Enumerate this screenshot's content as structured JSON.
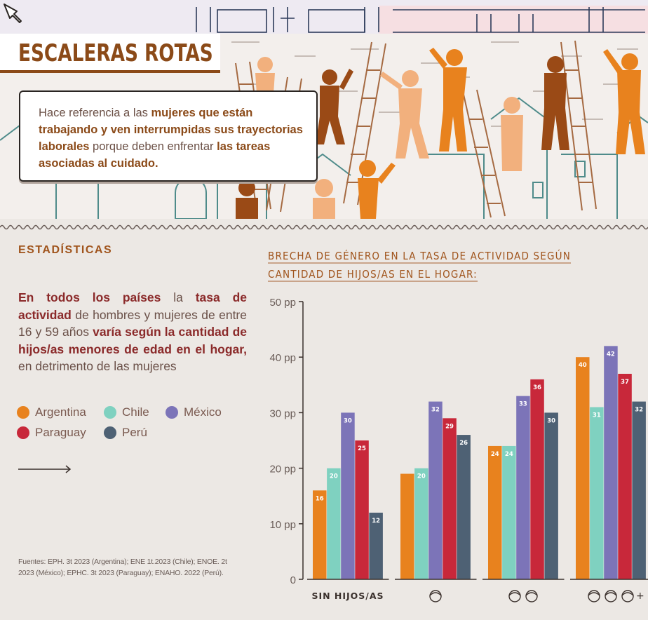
{
  "banner": {
    "title": "ESCALERAS ROTAS",
    "note": {
      "t1": "Hace referencia a las ",
      "b1": "mujeres que están trabajando y ven interrumpidas sus trayectorias laborales",
      "t2": " porque deben enfrentar ",
      "b2": "las tareas asociadas al cuidado."
    }
  },
  "stats": {
    "heading": "ESTADÍSTICAS",
    "b1": "En todos los países",
    "t1": " la ",
    "b2": "tasa de actividad",
    "t2": " de hombres y mujeres de entre 16 y 59 años ",
    "b3": "varía según la cantidad de hijos/as menores de edad en el hogar,",
    "t3": " en detrimento de las mujeres"
  },
  "legend": [
    {
      "label": "Argentina",
      "color": "#e8821e"
    },
    {
      "label": "Chile",
      "color": "#7fd1c0"
    },
    {
      "label": "México",
      "color": "#7c74b8"
    },
    {
      "label": "Paraguay",
      "color": "#c8283a"
    },
    {
      "label": "Perú",
      "color": "#4e6174"
    }
  ],
  "sources": "Fuentes: EPH. 3t 2023 (Argentina); ENE 1t.2023 (Chile); ENOE. 2t 2023 (México); EPHC. 3t 2023 (Paraguay); ENAHO. 2022 (Perú).",
  "chart_data": {
    "type": "bar",
    "title": "BRECHA DE GÉNERO EN LA TASA DE ACTIVIDAD SEGÚN CANTIDAD DE HIJOS/AS EN EL HOGAR:",
    "categories": [
      "SIN HIJOS/AS",
      "1 hijo/a (icon)",
      "2 hijos/as (icon)",
      "3+ hijos/as (icon)"
    ],
    "category_labels": [
      "SIN HIJOS/AS",
      "",
      "",
      "+"
    ],
    "category_icon_counts": [
      0,
      1,
      2,
      3
    ],
    "y_ticks": [
      "0",
      "10 pp",
      "20 pp",
      "30 pp",
      "40 pp",
      "50 pp"
    ],
    "ylim": [
      0,
      50
    ],
    "grid": false,
    "legend_position": "left",
    "series": [
      {
        "name": "Argentina",
        "color": "#e8821e",
        "values": [
          16,
          19,
          24,
          40
        ],
        "labels": [
          "16",
          "",
          "24",
          "40"
        ]
      },
      {
        "name": "Chile",
        "color": "#7fd1c0",
        "values": [
          20,
          20,
          24,
          31
        ],
        "labels": [
          "20",
          "20",
          "24",
          "31"
        ]
      },
      {
        "name": "México",
        "color": "#7c74b8",
        "values": [
          30,
          32,
          33,
          42
        ],
        "labels": [
          "30",
          "32",
          "33",
          "42"
        ]
      },
      {
        "name": "Paraguay",
        "color": "#c8283a",
        "values": [
          25,
          29,
          36,
          37
        ],
        "labels": [
          "25",
          "29",
          "36",
          "37"
        ]
      },
      {
        "name": "Perú",
        "color": "#4e6174",
        "values": [
          12,
          26,
          30,
          32
        ],
        "labels": [
          "12",
          "26",
          "30",
          "32"
        ]
      }
    ]
  }
}
